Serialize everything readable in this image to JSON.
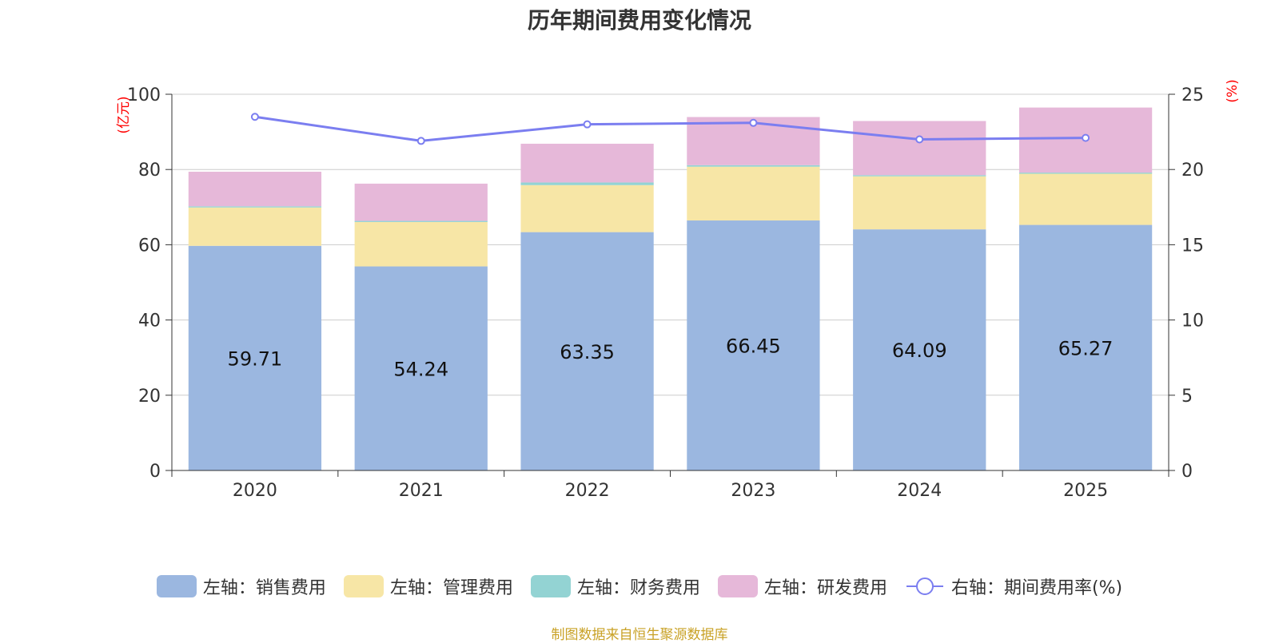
{
  "chart_data": {
    "type": "bar",
    "title": "历年期间费用变化情况",
    "categories": [
      "2020",
      "2021",
      "2022",
      "2023",
      "2024",
      "2025"
    ],
    "left_axis": {
      "unit_label": "(亿元)",
      "ylim": [
        0,
        100
      ],
      "ticks": [
        0,
        20,
        40,
        60,
        80,
        100
      ]
    },
    "right_axis": {
      "unit_label": "(%)",
      "ylim": [
        0,
        25
      ],
      "ticks": [
        0,
        5,
        10,
        15,
        20,
        25
      ]
    },
    "stacked": true,
    "grid": true,
    "legend_position": "bottom",
    "series": [
      {
        "name": "左轴：销售费用",
        "axis": "left",
        "type": "bar",
        "color": "#9bb7e0",
        "values": [
          59.71,
          54.24,
          63.35,
          66.45,
          64.09,
          65.27
        ],
        "show_labels": true
      },
      {
        "name": "左轴：管理费用",
        "axis": "left",
        "type": "bar",
        "color": "#f7e6a6",
        "values": [
          10.2,
          11.8,
          12.5,
          14.3,
          14.1,
          13.6
        ]
      },
      {
        "name": "左轴：财务费用",
        "axis": "left",
        "type": "bar",
        "color": "#93d3d3",
        "values": [
          0.3,
          0.3,
          0.7,
          0.4,
          0.3,
          0.3
        ]
      },
      {
        "name": "左轴：研发费用",
        "axis": "left",
        "type": "bar",
        "color": "#e6b8d9",
        "values": [
          9.2,
          9.9,
          10.3,
          12.8,
          14.4,
          17.3
        ]
      },
      {
        "name": "右轴：期间费用率(%)",
        "axis": "right",
        "type": "line",
        "color": "#7b7ef0",
        "values": [
          23.5,
          21.9,
          23.0,
          23.1,
          22.0,
          22.1
        ]
      }
    ],
    "source": "制图数据来自恒生聚源数据库"
  }
}
